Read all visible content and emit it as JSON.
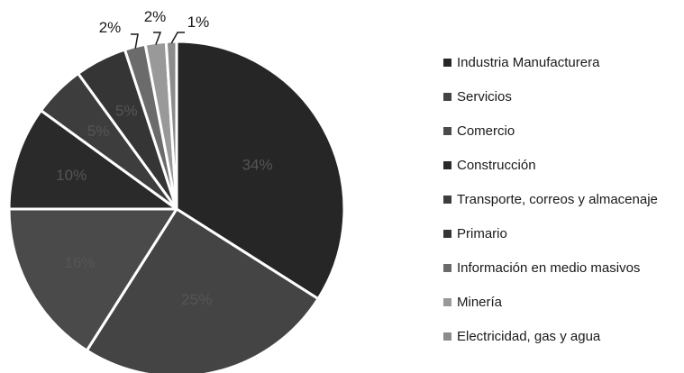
{
  "chart_data": {
    "type": "pie",
    "labels": [
      "Industria Manufacturera",
      "Servicios",
      "Comercio",
      "Construcción",
      "Transporte, correos y almacenaje",
      "Primario",
      "Información en medio masivos",
      "Minería",
      "Electricidad, gas y agua"
    ],
    "values": [
      34,
      25,
      16,
      10,
      5,
      5,
      2,
      2,
      1
    ],
    "value_labels": [
      "34%",
      "25%",
      "16%",
      "10%",
      "5%",
      "5%",
      "2%",
      "2%",
      "1%"
    ],
    "colors": [
      "#262626",
      "#444444",
      "#4a4a4a",
      "#2a2a2a",
      "#3d3d3d",
      "#353535",
      "#6b6b6b",
      "#999999",
      "#8c8c8c"
    ],
    "legend_position": "right",
    "start_angle_deg": 0,
    "direction": "clockwise"
  }
}
